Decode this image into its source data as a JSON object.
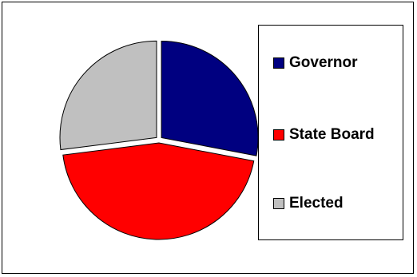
{
  "chart_data": {
    "type": "pie",
    "categories": [
      "Governor",
      "State Board",
      "Elected"
    ],
    "values": [
      28,
      45,
      27
    ],
    "unit": "percent",
    "colors": [
      "#000080",
      "#ff0000",
      "#c0c0c0"
    ],
    "exploded": true,
    "legend_position": "right",
    "title": ""
  },
  "legend": {
    "items": [
      {
        "label": "Governor",
        "color": "#000080"
      },
      {
        "label": "State Board",
        "color": "#ff0000"
      },
      {
        "label": "Elected",
        "color": "#c0c0c0"
      }
    ]
  }
}
